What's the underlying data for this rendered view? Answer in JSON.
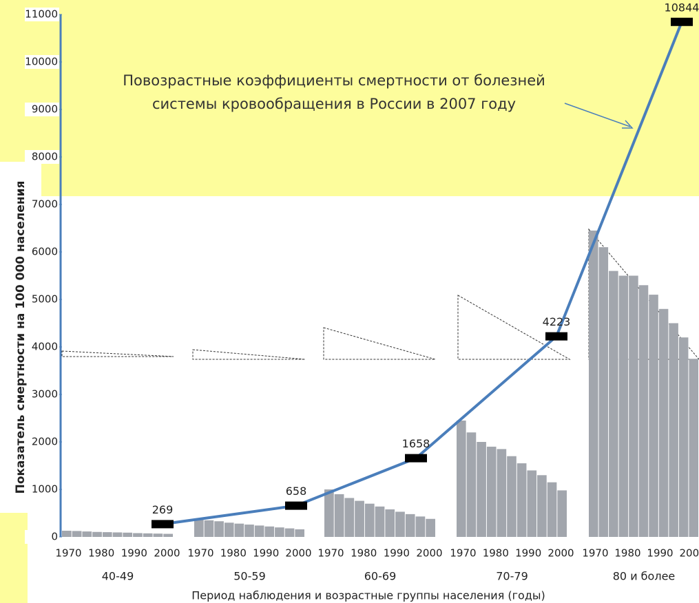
{
  "chart_data": {
    "type": "combo",
    "annotation": [
      "Повозрастные коэффициенты смертности от  болезней",
      "системы кровообращения  в России в 2007 году"
    ],
    "ylabel": "Показатель смертности на 100 000 населения",
    "xlabel": "Период наблюдения и возрастные группы населения (годы)",
    "ylim": [
      0,
      11000
    ],
    "yticks": [
      0,
      1000,
      2000,
      3000,
      4000,
      5000,
      6000,
      7000,
      8000,
      9000,
      10000,
      11000
    ],
    "xticks": [
      1970,
      1980,
      1990,
      2000
    ],
    "xlim": [
      1968,
      2002
    ],
    "bar_color": "#a2a6ad",
    "groups": [
      {
        "name": "40-49",
        "values": [
          130,
          125,
          115,
          105,
          100,
          95,
          90,
          80,
          75,
          70,
          65
        ]
      },
      {
        "name": "50-59",
        "values": [
          380,
          350,
          330,
          300,
          280,
          260,
          240,
          220,
          200,
          180,
          160
        ]
      },
      {
        "name": "60-69",
        "values": [
          1000,
          900,
          820,
          760,
          700,
          640,
          580,
          530,
          480,
          430,
          380
        ]
      },
      {
        "name": "70-79",
        "values": [
          2450,
          2200,
          2000,
          1900,
          1850,
          1700,
          1550,
          1400,
          1300,
          1150,
          980
        ]
      },
      {
        "name": "80 и более",
        "values": [
          6450,
          6100,
          5600,
          5500,
          5500,
          5300,
          5100,
          4800,
          4500,
          4200,
          3750
        ]
      }
    ],
    "line": {
      "color": "#4a7ebb",
      "values": [
        269,
        658,
        1658,
        4223,
        10844
      ]
    }
  }
}
